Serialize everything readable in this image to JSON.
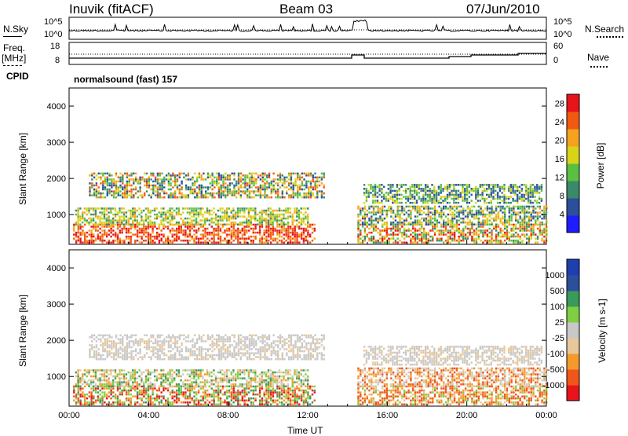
{
  "header": {
    "station": "Inuvik (fitACF)",
    "beam": "Beam 03",
    "date": "07/Jun/2010"
  },
  "top_panels": {
    "nsky_label": "N.Sky",
    "nsky_tick_high": "10^5",
    "nsky_tick_low": "10^0",
    "nsearch_label": "N.Search",
    "nsearch_tick_high": "10^5",
    "nsearch_tick_low": "10^0",
    "freq_label_line1": "Freq.",
    "freq_label_line2": "[MHz]",
    "freq_tick_high": "18",
    "freq_tick_low": "8",
    "nave_label": "Nave",
    "nave_tick_high": "60",
    "nave_tick_low": "0",
    "cpid_label": "CPID",
    "cpid_value": "normalsound (fast) 157"
  },
  "colors": {
    "power_scale": [
      "#1d1dff",
      "#2c4f9c",
      "#3a8a6a",
      "#5bbf42",
      "#d8d418",
      "#f7a21e",
      "#f25a12",
      "#e8141a"
    ],
    "velocity_scale": [
      "#e8141a",
      "#f0561a",
      "#f59a2a",
      "#e8c89a",
      "#c8c8c8",
      "#7ed040",
      "#3a9a5a",
      "#2c4f9c",
      "#1f3fb0"
    ]
  },
  "chart_data": [
    {
      "type": "heatmap",
      "title": "",
      "xlabel": "Time UT",
      "ylabel": "Slant Range [km]",
      "x_ticks": [
        "00:00",
        "04:00",
        "08:00",
        "12:00",
        "16:00",
        "20:00",
        "00:00"
      ],
      "xlim_hours": [
        0,
        24
      ],
      "y_ticks": [
        1000,
        2000,
        3000,
        4000
      ],
      "ylim": [
        180,
        4500
      ],
      "colorbar_label": "Power [dB]",
      "colorbar_ticks": [
        4,
        8,
        12,
        16,
        20,
        24,
        28
      ],
      "colorbar_range": [
        0,
        30
      ]
    },
    {
      "type": "heatmap",
      "title": "",
      "xlabel": "Time UT",
      "ylabel": "Slant Range [km]",
      "x_ticks": [
        "00:00",
        "04:00",
        "08:00",
        "12:00",
        "16:00",
        "20:00",
        "00:00"
      ],
      "xlim_hours": [
        0,
        24
      ],
      "y_ticks": [
        1000,
        2000,
        3000,
        4000
      ],
      "ylim": [
        180,
        4500
      ],
      "colorbar_label": "Velocity [m s-1]",
      "colorbar_ticks": [
        1000,
        500,
        100,
        25,
        -25,
        -100,
        -500,
        -1000
      ]
    }
  ],
  "axis": {
    "time_label": "Time UT"
  }
}
